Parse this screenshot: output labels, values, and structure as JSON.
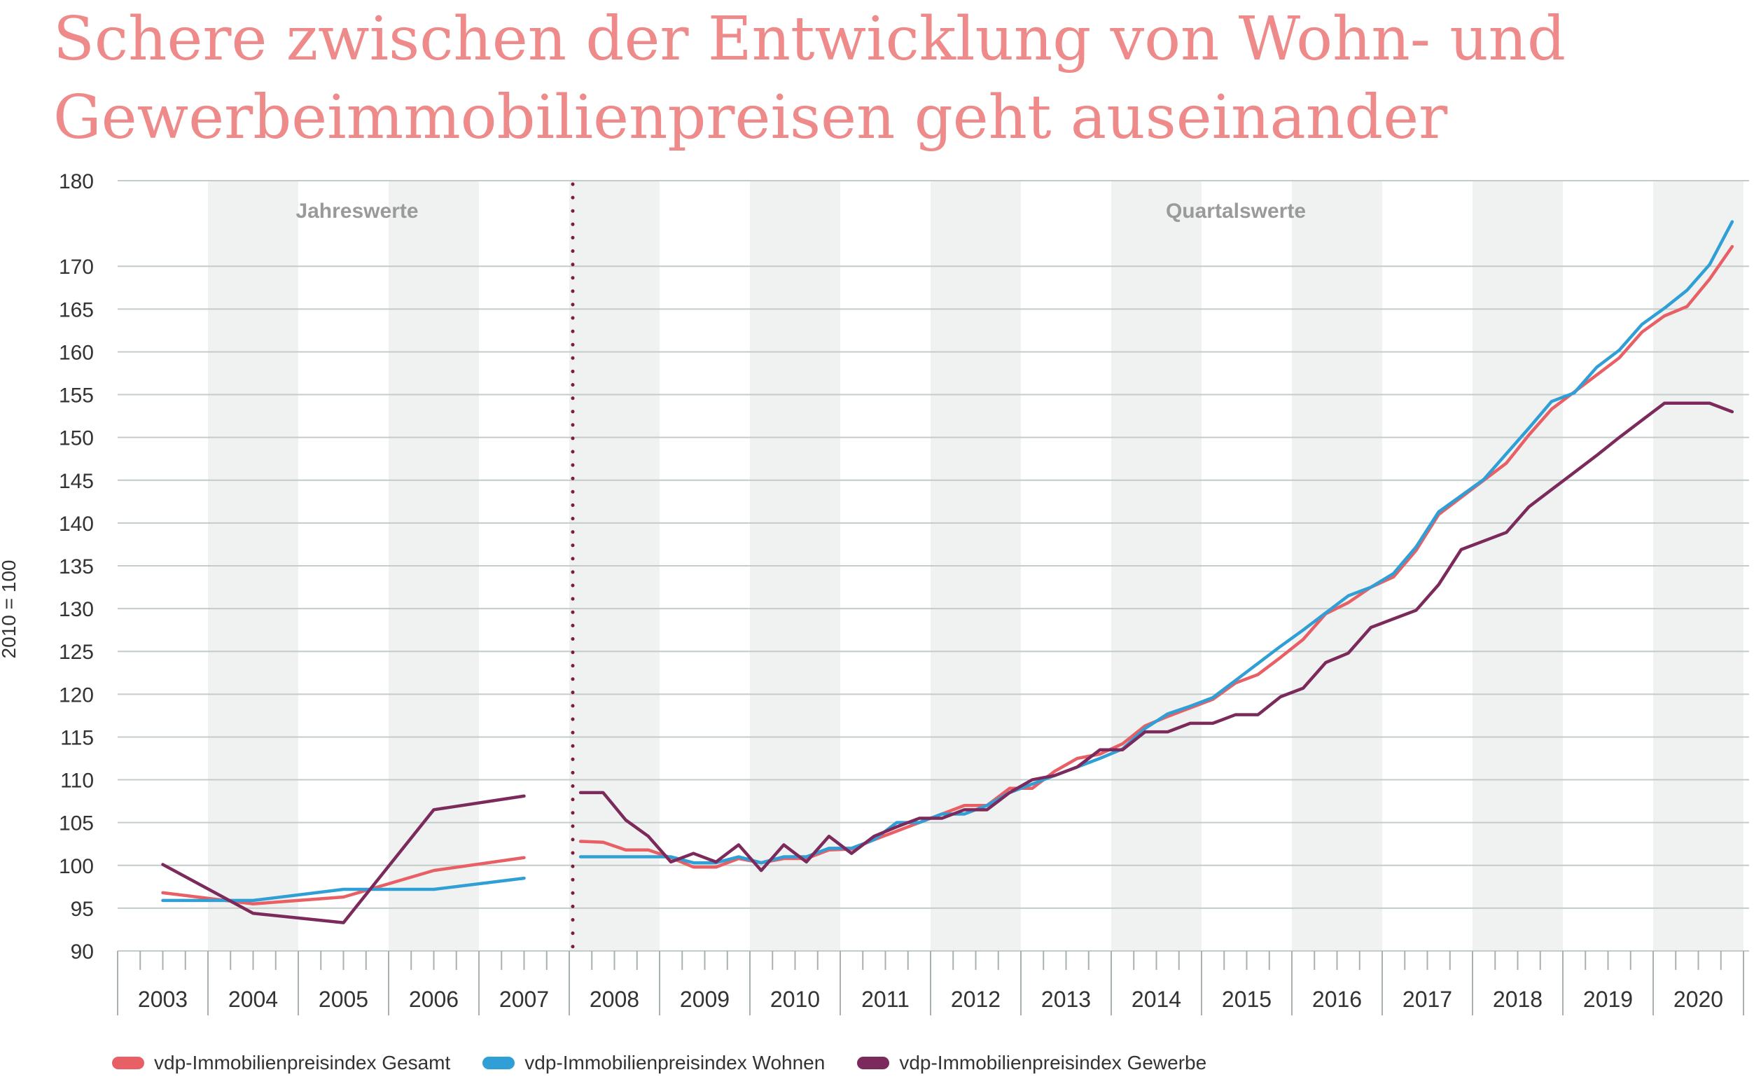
{
  "title_lines": [
    "Schere zwischen der Entwicklung von Wohn- und",
    "Gewerbeimmobilienpreisen geht auseinander"
  ],
  "chart_data": {
    "type": "line",
    "ylabel": "2010 = 100",
    "ylim": [
      90,
      180
    ],
    "yticks": [
      90,
      95,
      100,
      105,
      110,
      115,
      120,
      125,
      130,
      135,
      140,
      145,
      150,
      155,
      160,
      165,
      170,
      180
    ],
    "grid": true,
    "legend_position": "bottom",
    "categories": [
      "2003",
      "2004",
      "2005",
      "2006",
      "2007",
      "2008",
      "2009",
      "2010",
      "2011",
      "2012",
      "2013",
      "2014",
      "2015",
      "2016",
      "2017",
      "2018",
      "2019",
      "2020"
    ],
    "period_labels": {
      "annual": "Jahreswerte",
      "quarterly": "Quartalswerte"
    },
    "annual": {
      "x": [
        "2003",
        "2004",
        "2005",
        "2006",
        "2007"
      ],
      "series": [
        {
          "name": "vdp-Immobilienpreisindex Gesamt",
          "color": "#e85f65",
          "values": [
            96.8,
            95.5,
            96.3,
            99.4,
            100.9
          ]
        },
        {
          "name": "vdp-Immobilienpreisindex Wohnen",
          "color": "#2f9fd6",
          "values": [
            95.9,
            95.9,
            97.2,
            97.2,
            98.5
          ]
        },
        {
          "name": "vdp-Immobilienpreisindex Gewerbe",
          "color": "#7b2a5b",
          "values": [
            100.1,
            94.4,
            93.3,
            106.5,
            108.1
          ]
        }
      ]
    },
    "quarterly": {
      "start": "2008 Q1",
      "series": [
        {
          "name": "vdp-Immobilienpreisindex Gesamt",
          "color": "#e85f65",
          "values": [
            102.8,
            102.7,
            101.8,
            101.8,
            100.9,
            99.8,
            99.8,
            100.8,
            100.3,
            100.8,
            100.8,
            101.8,
            101.9,
            103.0,
            104.0,
            105.0,
            106.0,
            107.0,
            107.0,
            109.0,
            109.0,
            111.0,
            112.5,
            113.0,
            114.2,
            116.3,
            117.4,
            118.4,
            119.4,
            121.3,
            122.3,
            124.3,
            126.4,
            129.4,
            130.7,
            132.5,
            133.7,
            136.8,
            141.0,
            143.0,
            145.0,
            147.0,
            150.3,
            153.3,
            155.3,
            157.3,
            159.3,
            162.3,
            164.2,
            165.3,
            168.5,
            172.3
          ]
        },
        {
          "name": "vdp-Immobilienpreisindex Wohnen",
          "color": "#2f9fd6",
          "values": [
            101.0,
            101.0,
            101.0,
            101.0,
            101.0,
            100.3,
            100.3,
            101.0,
            100.3,
            101.0,
            101.0,
            102.0,
            102.0,
            103.0,
            105.0,
            105.0,
            106.0,
            106.0,
            107.0,
            108.5,
            109.5,
            110.5,
            111.5,
            112.5,
            113.6,
            116.0,
            117.7,
            118.6,
            119.6,
            121.6,
            123.6,
            125.6,
            127.5,
            129.5,
            131.5,
            132.5,
            134.1,
            137.2,
            141.3,
            143.2,
            145.1,
            148.1,
            151.1,
            154.2,
            155.2,
            158.2,
            160.2,
            163.2,
            165.1,
            167.2,
            170.2,
            175.2
          ]
        },
        {
          "name": "vdp-Immobilienpreisindex Gewerbe",
          "color": "#7b2a5b",
          "values": [
            108.5,
            108.5,
            105.3,
            103.4,
            100.4,
            101.4,
            100.4,
            102.4,
            99.4,
            102.4,
            100.4,
            103.4,
            101.4,
            103.4,
            104.5,
            105.5,
            105.5,
            106.5,
            106.5,
            108.5,
            110.0,
            110.5,
            111.5,
            113.5,
            113.5,
            115.6,
            115.6,
            116.6,
            116.6,
            117.6,
            117.6,
            119.7,
            120.7,
            123.7,
            124.8,
            127.8,
            128.8,
            129.8,
            132.8,
            136.9,
            137.9,
            138.9,
            141.9,
            143.9,
            145.9,
            147.9,
            150.0,
            152.0,
            154.0,
            154.0,
            154.0,
            153.0
          ]
        }
      ]
    }
  }
}
